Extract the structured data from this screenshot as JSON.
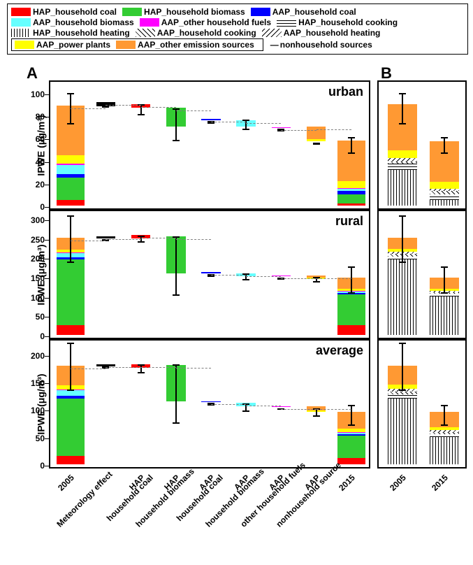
{
  "legend": {
    "items": [
      {
        "label": "HAP_household coal",
        "color": "#ff0000"
      },
      {
        "label": "HAP_household biomass",
        "color": "#33cc33"
      },
      {
        "label": "AAP_household coal",
        "color": "#0000ff"
      },
      {
        "label": "AAP_household biomass",
        "color": "#66ffff"
      },
      {
        "label": "AAP_other household fuels",
        "color": "#ff00ff"
      },
      {
        "label": "HAP_household cooking",
        "pattern": "horiz"
      },
      {
        "label": "HAP_household heating",
        "pattern": "vert"
      },
      {
        "label": "AAP_household cooking",
        "pattern": "diag"
      },
      {
        "label": "AAP_household heating",
        "pattern": "diag2"
      },
      {
        "label": "AAP_power plants",
        "color": "#ffff00"
      },
      {
        "label": "AAP_other emission sources",
        "color": "#ff9933"
      }
    ],
    "nonhh_label": "nonhousehold sources"
  },
  "panel_labels": {
    "A": "A",
    "B": "B"
  },
  "ylabel": "IPWE (μg/m³)",
  "panels": [
    {
      "title": "urban",
      "ylim": [
        0,
        110
      ],
      "ytick_step": 20,
      "ymax_label": 100,
      "A_bars": [
        {
          "x": 0,
          "stack": [
            {
              "color": "#ff0000",
              "h": 5
            },
            {
              "color": "#33cc33",
              "h": 20
            },
            {
              "color": "#0000ff",
              "h": 3
            },
            {
              "color": "#66ffff",
              "h": 8
            },
            {
              "color": "#ff00ff",
              "h": 1
            },
            {
              "color": "#ffff00",
              "h": 8
            },
            {
              "color": "#ff9933",
              "h": 44
            }
          ],
          "err": [
            75,
            102
          ]
        },
        {
          "x": 1,
          "stack": [
            {
              "color": "#000000",
              "h": 4
            }
          ],
          "base": 88,
          "narrow": true,
          "err": [
            90,
            92
          ]
        },
        {
          "x": 2,
          "stack": [
            {
              "color": "#ff0000",
              "h": 3
            }
          ],
          "base": 87,
          "narrow": true,
          "err": [
            83,
            92
          ]
        },
        {
          "x": 3,
          "stack": [
            {
              "color": "#33cc33",
              "h": 17
            }
          ],
          "base": 70,
          "narrow": true,
          "err": [
            60,
            88
          ]
        },
        {
          "x": 4,
          "stack": [
            {
              "color": "#0000ff",
              "h": 0.8
            }
          ],
          "base": 76,
          "narrow": true,
          "err": [
            76,
            77
          ]
        },
        {
          "x": 5,
          "stack": [
            {
              "color": "#66ffff",
              "h": 6
            }
          ],
          "base": 70,
          "narrow": true,
          "err": [
            70,
            78
          ]
        },
        {
          "x": 6,
          "stack": [
            {
              "color": "#ff00ff",
              "h": 0.8
            }
          ],
          "base": 69,
          "narrow": true,
          "err": [
            69,
            70
          ]
        },
        {
          "x": 7,
          "stack": [
            {
              "color": "#ffff00",
              "h": 2
            },
            {
              "color": "#ff9933",
              "h": 11
            }
          ],
          "base": 57,
          "narrow": true,
          "err": [
            57,
            58
          ]
        },
        {
          "x": 8,
          "stack": [
            {
              "color": "#ff0000",
              "h": 2
            },
            {
              "color": "#33cc33",
              "h": 8
            },
            {
              "color": "#0000ff",
              "h": 3
            },
            {
              "color": "#66ffff",
              "h": 2
            },
            {
              "color": "#ff00ff",
              "h": 0.5
            },
            {
              "color": "#ffff00",
              "h": 6
            },
            {
              "color": "#ff9933",
              "h": 36
            }
          ],
          "err": [
            49,
            63
          ]
        }
      ],
      "B_bars": [
        {
          "x": 0,
          "stack": [
            {
              "pattern": "vert",
              "h": 32
            },
            {
              "pattern": "horiz",
              "h": 5
            },
            {
              "pattern": "diag",
              "h": 2
            },
            {
              "pattern": "diag2",
              "h": 3
            },
            {
              "color": "#ffff00",
              "h": 7
            },
            {
              "color": "#ff9933",
              "h": 41
            }
          ],
          "err": [
            75,
            102
          ]
        },
        {
          "x": 1,
          "stack": [
            {
              "pattern": "vert",
              "h": 5
            },
            {
              "pattern": "horiz",
              "h": 5
            },
            {
              "pattern": "diag",
              "h": 3
            },
            {
              "pattern": "diag2",
              "h": 2
            },
            {
              "color": "#ffff00",
              "h": 6
            },
            {
              "color": "#ff9933",
              "h": 36
            }
          ],
          "err": [
            49,
            63
          ]
        }
      ]
    },
    {
      "title": "rural",
      "ylim": [
        0,
        320
      ],
      "ytick_step": 50,
      "ymax_label": 300,
      "A_bars": [
        {
          "x": 0,
          "stack": [
            {
              "color": "#ff0000",
              "h": 25
            },
            {
              "color": "#33cc33",
              "h": 170
            },
            {
              "color": "#0000ff",
              "h": 5
            },
            {
              "color": "#66ffff",
              "h": 12
            },
            {
              "color": "#ff00ff",
              "h": 1
            },
            {
              "color": "#ffff00",
              "h": 8
            },
            {
              "color": "#ff9933",
              "h": 30
            }
          ],
          "err": [
            195,
            315
          ]
        },
        {
          "x": 1,
          "stack": [
            {
              "color": "#000000",
              "h": 5
            }
          ],
          "base": 250,
          "narrow": true,
          "err": [
            252,
            254
          ]
        },
        {
          "x": 2,
          "stack": [
            {
              "color": "#ff0000",
              "h": 8
            }
          ],
          "base": 250,
          "narrow": true,
          "err": [
            248,
            262
          ]
        },
        {
          "x": 3,
          "stack": [
            {
              "color": "#33cc33",
              "h": 95
            }
          ],
          "base": 160,
          "narrow": true,
          "err": [
            110,
            260
          ]
        },
        {
          "x": 4,
          "stack": [
            {
              "color": "#0000ff",
              "h": 2
            }
          ],
          "base": 160,
          "narrow": true,
          "err": [
            160,
            162
          ]
        },
        {
          "x": 5,
          "stack": [
            {
              "color": "#66ffff",
              "h": 8
            }
          ],
          "base": 152,
          "narrow": true,
          "err": [
            150,
            165
          ]
        },
        {
          "x": 6,
          "stack": [
            {
              "color": "#ff00ff",
              "h": 1
            }
          ],
          "base": 152,
          "narrow": true,
          "err": [
            152,
            153
          ]
        },
        {
          "x": 7,
          "stack": [
            {
              "color": "#ffff00",
              "h": 3
            },
            {
              "color": "#ff9933",
              "h": 6
            }
          ],
          "base": 145,
          "narrow": true,
          "err": [
            144,
            155
          ]
        },
        {
          "x": 8,
          "stack": [
            {
              "color": "#ff0000",
              "h": 25
            },
            {
              "color": "#33cc33",
              "h": 80
            },
            {
              "color": "#0000ff",
              "h": 3
            },
            {
              "color": "#66ffff",
              "h": 5
            },
            {
              "color": "#ff00ff",
              "h": 1
            },
            {
              "color": "#ffff00",
              "h": 6
            },
            {
              "color": "#ff9933",
              "h": 28
            }
          ],
          "err": [
            115,
            182
          ]
        }
      ],
      "B_bars": [
        {
          "x": 0,
          "stack": [
            {
              "pattern": "vert",
              "h": 195
            },
            {
              "pattern": "horiz",
              "h": 8
            },
            {
              "pattern": "diag",
              "h": 6
            },
            {
              "pattern": "diag2",
              "h": 6
            },
            {
              "color": "#ffff00",
              "h": 8
            },
            {
              "color": "#ff9933",
              "h": 28
            }
          ],
          "err": [
            195,
            315
          ]
        },
        {
          "x": 1,
          "stack": [
            {
              "pattern": "vert",
              "h": 100
            },
            {
              "pattern": "horiz",
              "h": 6
            },
            {
              "pattern": "diag",
              "h": 5
            },
            {
              "pattern": "diag2",
              "h": 3
            },
            {
              "color": "#ffff00",
              "h": 6
            },
            {
              "color": "#ff9933",
              "h": 28
            }
          ],
          "err": [
            115,
            182
          ]
        }
      ]
    },
    {
      "title": "average",
      "ylim": [
        0,
        225
      ],
      "ytick_step": 50,
      "ymax_label": 200,
      "A_bars": [
        {
          "x": 0,
          "stack": [
            {
              "color": "#ff0000",
              "h": 15
            },
            {
              "color": "#33cc33",
              "h": 105
            },
            {
              "color": "#0000ff",
              "h": 5
            },
            {
              "color": "#66ffff",
              "h": 10
            },
            {
              "color": "#ff00ff",
              "h": 1
            },
            {
              "color": "#ffff00",
              "h": 8
            },
            {
              "color": "#ff9933",
              "h": 35
            }
          ],
          "err": [
            140,
            225
          ]
        },
        {
          "x": 1,
          "stack": [
            {
              "color": "#000000",
              "h": 4
            }
          ],
          "base": 178,
          "narrow": true,
          "err": [
            180,
            183
          ]
        },
        {
          "x": 2,
          "stack": [
            {
              "color": "#ff0000",
              "h": 6
            }
          ],
          "base": 176,
          "narrow": true,
          "err": [
            172,
            186
          ]
        },
        {
          "x": 3,
          "stack": [
            {
              "color": "#33cc33",
              "h": 65
            }
          ],
          "base": 115,
          "narrow": true,
          "err": [
            80,
            185
          ]
        },
        {
          "x": 4,
          "stack": [
            {
              "color": "#0000ff",
              "h": 2
            }
          ],
          "base": 113,
          "narrow": true,
          "err": [
            113,
            116
          ]
        },
        {
          "x": 5,
          "stack": [
            {
              "color": "#66ffff",
              "h": 7
            }
          ],
          "base": 105,
          "narrow": true,
          "err": [
            102,
            115
          ]
        },
        {
          "x": 6,
          "stack": [
            {
              "color": "#ff00ff",
              "h": 1
            }
          ],
          "base": 105,
          "narrow": true,
          "err": [
            105,
            106
          ]
        },
        {
          "x": 7,
          "stack": [
            {
              "color": "#ffff00",
              "h": 3
            },
            {
              "color": "#ff9933",
              "h": 8
            }
          ],
          "base": 95,
          "narrow": true,
          "err": [
            93,
            106
          ]
        },
        {
          "x": 8,
          "stack": [
            {
              "color": "#ff0000",
              "h": 12
            },
            {
              "color": "#33cc33",
              "h": 40
            },
            {
              "color": "#0000ff",
              "h": 3
            },
            {
              "color": "#66ffff",
              "h": 3
            },
            {
              "color": "#ff00ff",
              "h": 1
            },
            {
              "color": "#ffff00",
              "h": 6
            },
            {
              "color": "#ff9933",
              "h": 30
            }
          ],
          "err": [
            76,
            112
          ]
        }
      ],
      "B_bars": [
        {
          "x": 0,
          "stack": [
            {
              "pattern": "vert",
              "h": 120
            },
            {
              "pattern": "horiz",
              "h": 7
            },
            {
              "pattern": "diag",
              "h": 5
            },
            {
              "pattern": "diag2",
              "h": 5
            },
            {
              "color": "#ffff00",
              "h": 8
            },
            {
              "color": "#ff9933",
              "h": 34
            }
          ],
          "err": [
            140,
            225
          ]
        },
        {
          "x": 1,
          "stack": [
            {
              "pattern": "vert",
              "h": 50
            },
            {
              "pattern": "horiz",
              "h": 5
            },
            {
              "pattern": "diag",
              "h": 4
            },
            {
              "pattern": "diag2",
              "h": 3
            },
            {
              "color": "#ffff00",
              "h": 6
            },
            {
              "color": "#ff9933",
              "h": 27
            }
          ],
          "err": [
            76,
            112
          ]
        }
      ]
    }
  ],
  "x_labels_A": [
    "2005",
    "Meteorology effect",
    "HAP\nhousehold coal",
    "HAP\nhousehold biomass",
    "AAP\nhousehold coal",
    "AAP\nhousehold biomass",
    "AAP\nother household fuels",
    "AAP\nnonhousehold source",
    "2015"
  ],
  "x_labels_B": [
    "2005",
    "2015"
  ]
}
